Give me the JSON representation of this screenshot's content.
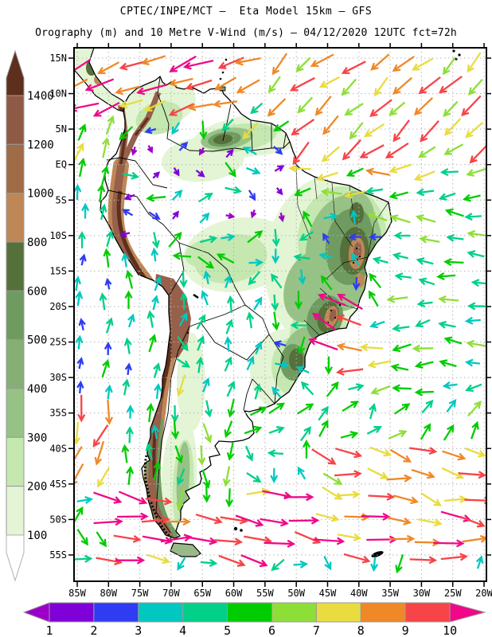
{
  "header": {
    "title": "CPTEC/INPE/MCT –  Eta Model 15km – GFS",
    "subtitle": "Orography (m) and 10 Metre V-Wind (m/s) – 04/12/2020 12UTC fct=72h"
  },
  "axes": {
    "lon_labels": [
      "85W",
      "80W",
      "75W",
      "70W",
      "65W",
      "60W",
      "55W",
      "50W",
      "45W",
      "40W",
      "35W",
      "30W",
      "25W",
      "20W"
    ],
    "lat_labels": [
      "15N",
      "10N",
      "5N",
      "EQ",
      "5S",
      "10S",
      "15S",
      "20S",
      "25S",
      "30S",
      "35S",
      "40S",
      "45S",
      "50S",
      "55S"
    ]
  },
  "orography_scale": {
    "unit": "m",
    "labels": [
      "1400",
      "1200",
      "1000",
      "800",
      "600",
      "500",
      "400",
      "300",
      "200",
      "100"
    ],
    "colors_top_to_bottom": [
      "#5e2f1d",
      "#8f5a45",
      "#a06b47",
      "#be8756",
      "#56703b",
      "#6f9b60",
      "#85af74",
      "#97c286",
      "#c4e8b0",
      "#e3f5d5",
      "#ffffff"
    ]
  },
  "wind_scale": {
    "unit": "m/s",
    "labels": [
      "1",
      "2",
      "3",
      "4",
      "5",
      "6",
      "7",
      "8",
      "9",
      "10"
    ],
    "segment_colors": [
      "#8000d8",
      "#2e3cf2",
      "#00c8c0",
      "#00d088",
      "#00cc00",
      "#8ede38",
      "#e8dc40",
      "#f08828",
      "#f64448"
    ],
    "below_color": "#9c00c8",
    "above_color": "#f00888"
  },
  "chart_data": {
    "type": "map",
    "projection": "latlon",
    "lon_range_deg_west": [
      85,
      20
    ],
    "lat_range_deg": [
      -55,
      15
    ],
    "model": "Eta Model 15km",
    "driver": "GFS",
    "fields": [
      "Orography (m)",
      "10 Metre V-Wind (m/s)"
    ],
    "valid": "04/12/2020 12UTC",
    "forecast": "fct=72h",
    "grid_deg": 5,
    "orography_levels_m": [
      100,
      200,
      300,
      400,
      500,
      600,
      800,
      1000,
      1200,
      1400
    ],
    "wind_speed_levels_ms": [
      1,
      2,
      3,
      4,
      5,
      6,
      7,
      8,
      9,
      10
    ],
    "wind_regions": [
      {
        "name": "se-brazil-coastal-jet",
        "lat": [
          -26,
          -19
        ],
        "lonW": [
          40,
          48
        ],
        "dir": [
          138,
          168
        ],
        "spd": [
          8.5,
          11.2
        ]
      },
      {
        "name": "guiana-coast",
        "lat": [
          4.5,
          8
        ],
        "lonW": [
          51,
          63
        ],
        "dir": [
          185,
          228
        ],
        "spd": [
          4,
          7.5
        ]
      },
      {
        "name": "amazon-interior-weak",
        "lat": [
          -10,
          7
        ],
        "lonW": [
          51,
          79
        ],
        "dir": [
          120,
          420
        ],
        "spd": [
          0.7,
          3.3
        ],
        "gusty": true
      },
      {
        "name": "caribbean-easterlies",
        "lat": [
          7,
          16
        ],
        "lonW": [
          55,
          86
        ],
        "dir": [
          186,
          214
        ],
        "spd": [
          7.5,
          11.3
        ]
      },
      {
        "name": "n-atlantic-trades",
        "lat": [
          1.5,
          16
        ],
        "lonW": [
          20,
          55
        ],
        "dir": [
          205,
          237
        ],
        "spd": [
          6,
          10
        ]
      },
      {
        "name": "equatorial-atlantic",
        "lat": [
          -6,
          1.5
        ],
        "lonW": [
          20,
          51
        ],
        "dir": [
          168,
          205
        ],
        "spd": [
          4.8,
          8.2
        ]
      },
      {
        "name": "e-pacific-north",
        "lat": [
          0,
          7
        ],
        "lonW": [
          79,
          86
        ],
        "dir": [
          55,
          85
        ],
        "spd": [
          5,
          8
        ]
      },
      {
        "name": "e-pacific-equator",
        "lat": [
          -12,
          0
        ],
        "lonW": [
          77,
          86
        ],
        "dir": [
          72,
          98
        ],
        "spd": [
          3.2,
          6
        ]
      },
      {
        "name": "atlantic-e-brazil",
        "lat": [
          -20,
          -5
        ],
        "lonW": [
          20,
          37
        ],
        "dir": [
          158,
          188
        ],
        "spd": [
          4,
          7
        ]
      },
      {
        "name": "se-coast-strong-westward",
        "lat": [
          -30,
          -23
        ],
        "lonW": [
          36,
          43
        ],
        "dir": [
          172,
          192
        ],
        "spd": [
          7.2,
          9.5
        ]
      },
      {
        "name": "brazil-interior-mixed",
        "lat": [
          -26,
          -8
        ],
        "lonW": [
          37,
          56
        ],
        "dir": [
          120,
          300
        ],
        "spd": [
          2.2,
          5.6
        ]
      },
      {
        "name": "paraguay-n-argentina-northward",
        "lat": [
          -33,
          -19
        ],
        "lonW": [
          54,
          68
        ],
        "dir": [
          58,
          100
        ],
        "spd": [
          2.8,
          5
        ]
      },
      {
        "name": "s-atlantic-mid",
        "lat": [
          -34,
          -20
        ],
        "lonW": [
          20,
          40
        ],
        "dir": [
          160,
          205
        ],
        "spd": [
          3.4,
          6.4
        ]
      },
      {
        "name": "s-atlantic-38s",
        "lat": [
          -40,
          -34
        ],
        "lonW": [
          20,
          58
        ],
        "dir": [
          15,
          75
        ],
        "spd": [
          3.8,
          6.2
        ]
      },
      {
        "name": "patagonia-southerlies",
        "lat": [
          -48,
          -31
        ],
        "lonW": [
          58,
          72
        ],
        "dir": [
          245,
          292
        ],
        "spd": [
          4.5,
          7.2
        ]
      },
      {
        "name": "sw-pacific-jet",
        "lat": [
          -46,
          -34
        ],
        "lonW": [
          79,
          86
        ],
        "dir": [
          230,
          275
        ],
        "spd": [
          6.5,
          9.8
        ]
      },
      {
        "name": "se-pacific-coastal-northward",
        "lat": [
          -46,
          -12
        ],
        "lonW": [
          70,
          86
        ],
        "dir": [
          70,
          105
        ],
        "spd": [
          2,
          5.6
        ]
      },
      {
        "name": "storm-track-se-atlantic",
        "lat": [
          -49,
          -40
        ],
        "lonW": [
          20,
          46
        ],
        "dir": [
          -35,
          10
        ],
        "spd": [
          6.5,
          10.3
        ]
      },
      {
        "name": "far-south-westerlies",
        "lat": [
          -56,
          -46
        ],
        "lonW": [
          20,
          81
        ],
        "dir": [
          -25,
          10
        ],
        "spd": [
          7.5,
          11.4
        ]
      },
      {
        "name": "default",
        "lat": [
          -60,
          20
        ],
        "lonW": [
          15,
          90
        ],
        "dir": [
          0,
          360
        ],
        "spd": [
          3,
          6
        ]
      }
    ]
  }
}
